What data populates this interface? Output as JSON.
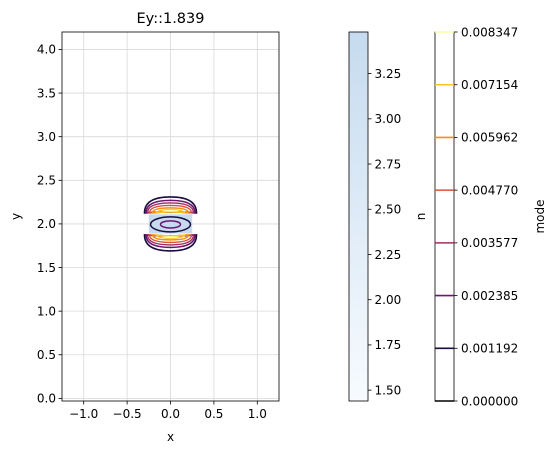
{
  "chart_data": {
    "type": "contour",
    "title": "Ey::1.839",
    "xlabel": "x",
    "ylabel": "y",
    "xlim": [
      -1.25,
      1.25
    ],
    "ylim": [
      -0.03,
      4.2
    ],
    "xticks": [
      "−1.0",
      "−0.5",
      "0.0",
      "0.5",
      "1.0"
    ],
    "xtick_values": [
      -1.0,
      -0.5,
      0.0,
      0.5,
      1.0
    ],
    "yticks": [
      "0.0",
      "0.5",
      "1.0",
      "1.5",
      "2.0",
      "2.5",
      "3.0",
      "3.5",
      "4.0"
    ],
    "ytick_values": [
      0.0,
      0.5,
      1.0,
      1.5,
      2.0,
      2.5,
      3.0,
      3.5,
      4.0
    ],
    "grid": true,
    "core": {
      "x": [
        -0.25,
        0.25
      ],
      "y": [
        1.89,
        2.11
      ],
      "n": 3.48
    },
    "cladding_n": 1.44,
    "colorbar_n": {
      "label": "n",
      "range": [
        1.44,
        3.48
      ],
      "ticks": [
        "1.50",
        "1.75",
        "2.00",
        "2.25",
        "2.50",
        "2.75",
        "3.00",
        "3.25"
      ],
      "tick_values": [
        1.5,
        1.75,
        2.0,
        2.25,
        2.5,
        2.75,
        3.0,
        3.25
      ],
      "cmap": [
        "#f7fbff",
        "#c6dbef"
      ]
    },
    "colorbar_mode": {
      "label": "mode",
      "ticks": [
        "0.000000",
        "0.001192",
        "0.002385",
        "0.003577",
        "0.004770",
        "0.005962",
        "0.007154",
        "0.008347"
      ],
      "levels": [
        0.0,
        0.001192,
        0.002385,
        0.003577,
        0.00477,
        0.005962,
        0.007154,
        0.008347
      ],
      "level_colors": [
        "#000004",
        "#1b0c41",
        "#6a176e",
        "#a52c60",
        "#dd513a",
        "#f98e09",
        "#fac42a",
        "#fcffa4"
      ]
    }
  }
}
